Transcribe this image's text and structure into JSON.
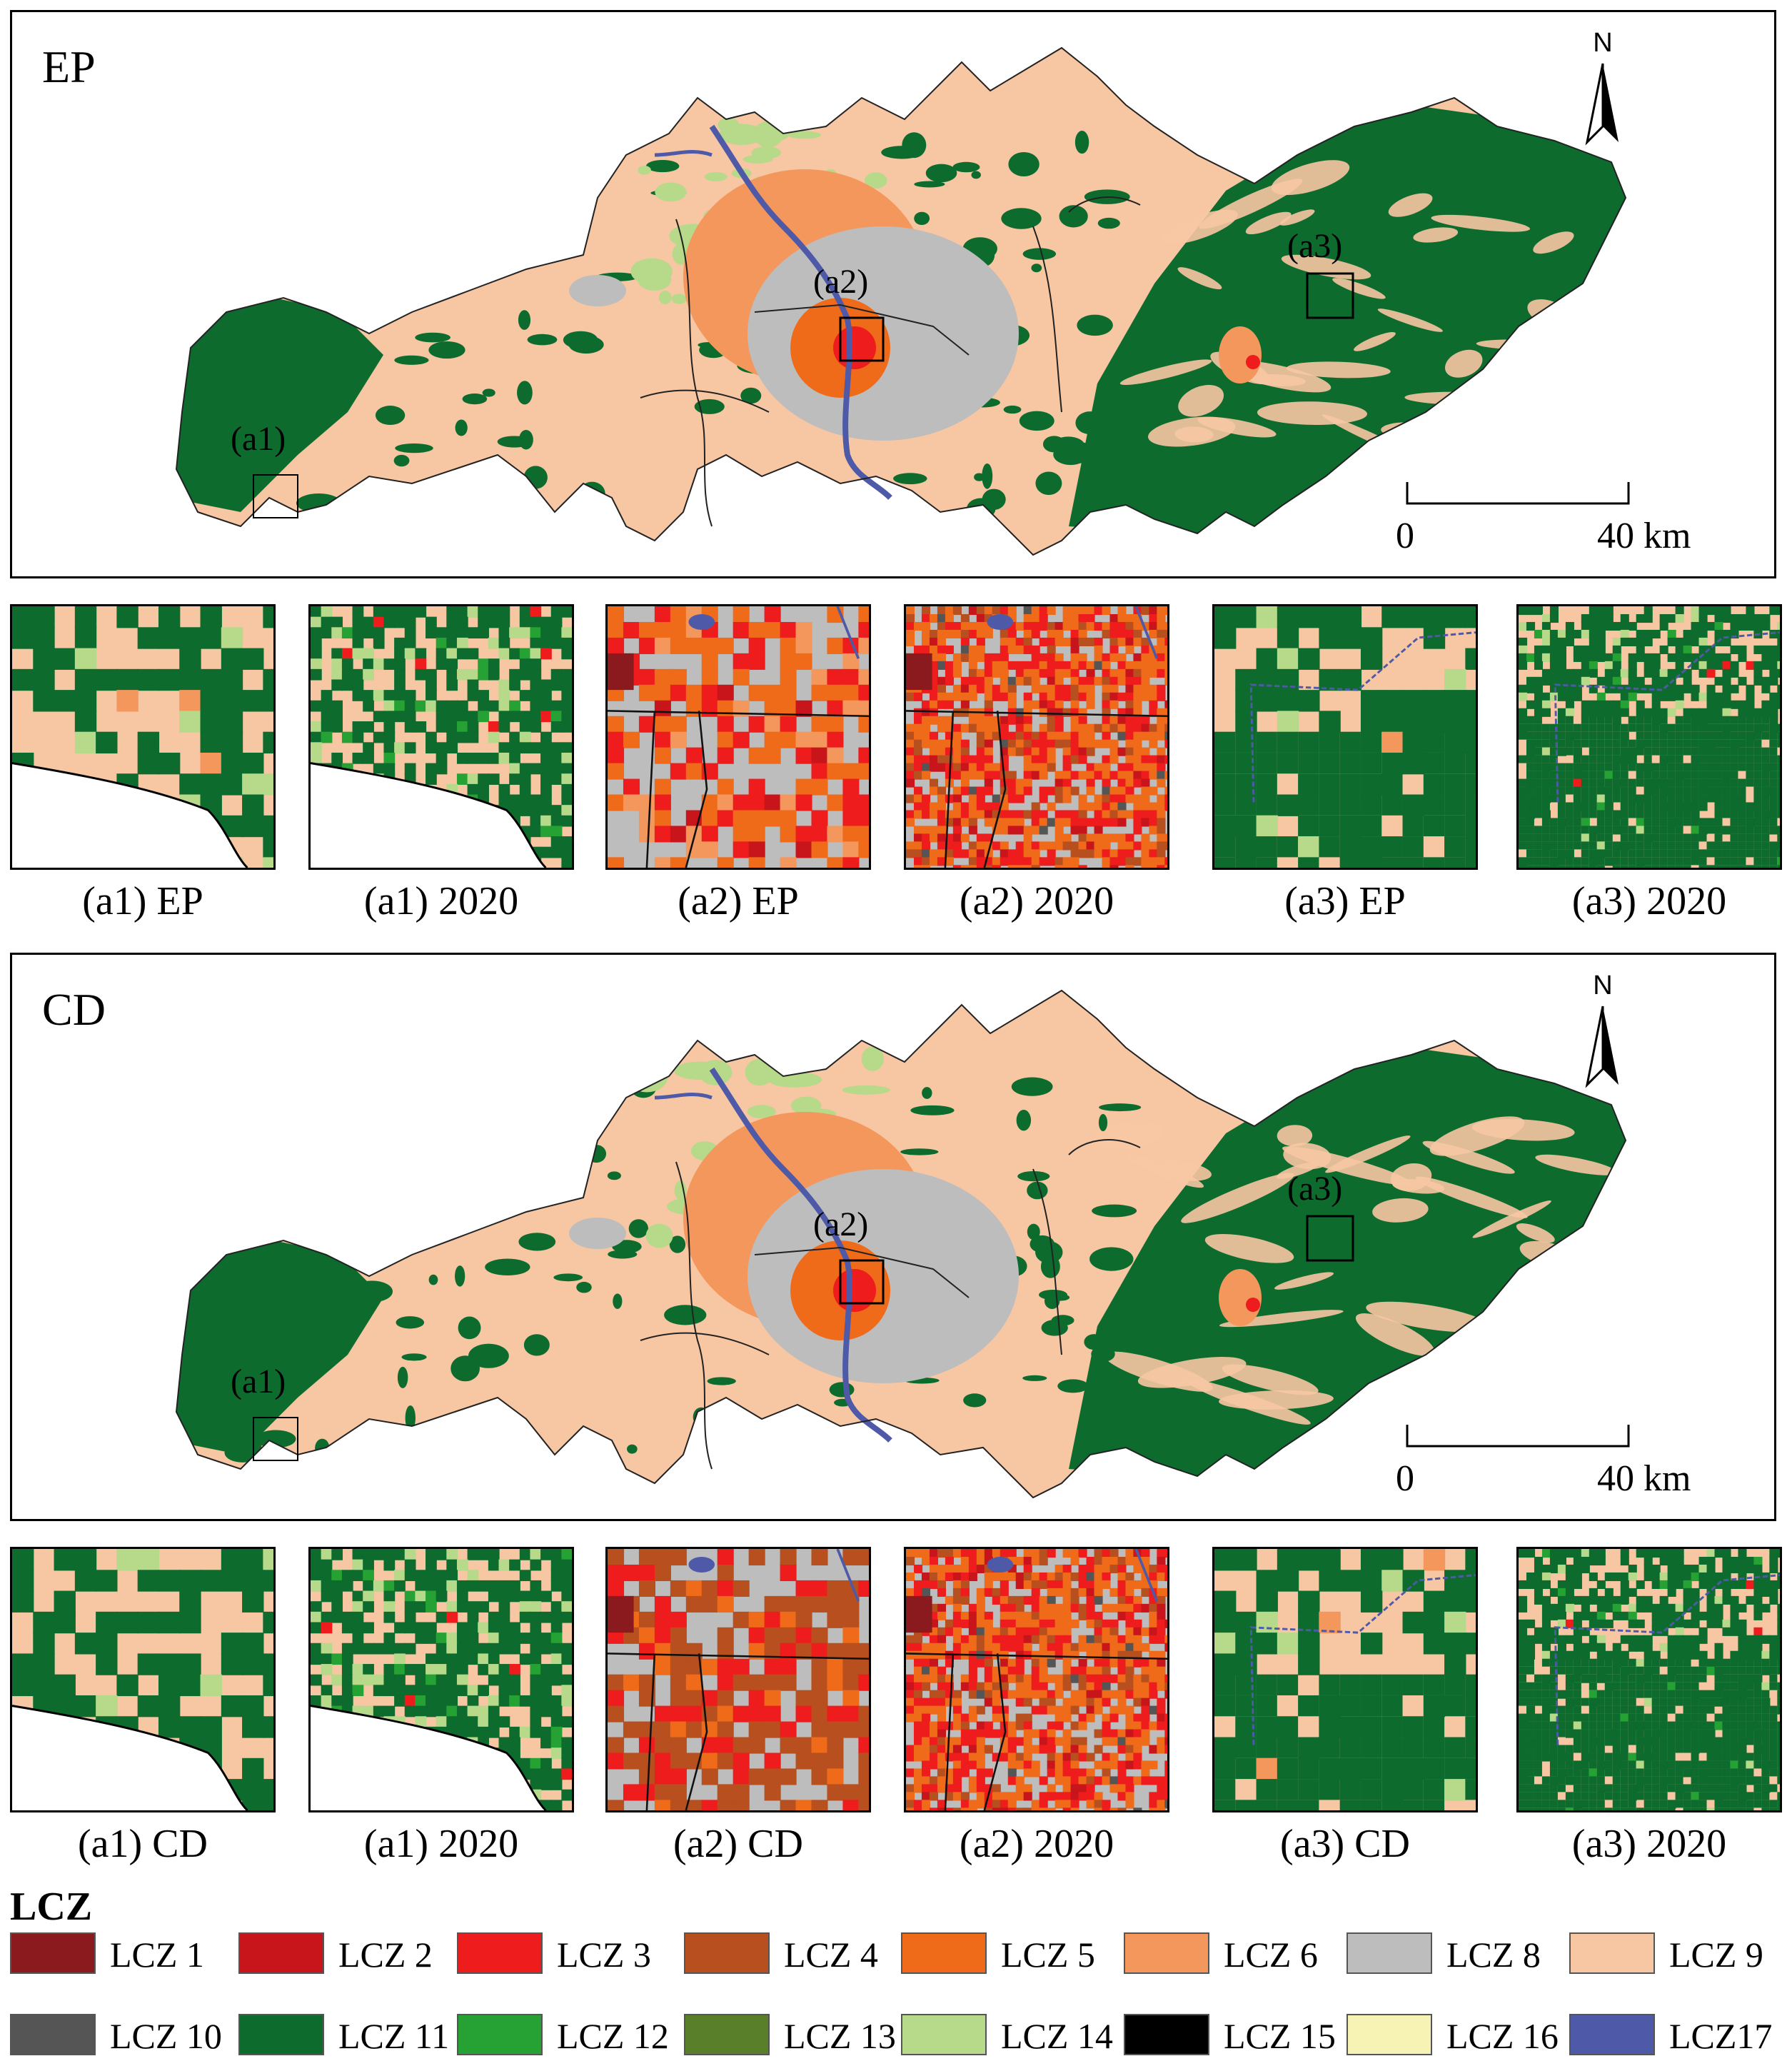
{
  "panels": [
    {
      "title": "EP",
      "north_label": "N",
      "scale": {
        "start": "0",
        "end": "40 km"
      },
      "markers": [
        {
          "label": "(a1)"
        },
        {
          "label": "(a2)"
        },
        {
          "label": "(a3)"
        }
      ],
      "insets": [
        {
          "caption": "(a1) EP",
          "theme": "a1"
        },
        {
          "caption": "(a1) 2020",
          "theme": "a1b"
        },
        {
          "caption": "(a2) EP",
          "theme": "a2"
        },
        {
          "caption": "(a2) 2020",
          "theme": "a2b"
        },
        {
          "caption": "(a3) EP",
          "theme": "a3"
        },
        {
          "caption": "(a3) 2020",
          "theme": "a3b"
        }
      ]
    },
    {
      "title": "CD",
      "north_label": "N",
      "scale": {
        "start": "0",
        "end": "40 km"
      },
      "markers": [
        {
          "label": "(a1)"
        },
        {
          "label": "(a2)"
        },
        {
          "label": "(a3)"
        }
      ],
      "insets": [
        {
          "caption": "(a1) CD",
          "theme": "a1"
        },
        {
          "caption": "(a1) 2020",
          "theme": "a1b"
        },
        {
          "caption": "(a2) CD",
          "theme": "a2c"
        },
        {
          "caption": "(a2) 2020",
          "theme": "a2b"
        },
        {
          "caption": "(a3) CD",
          "theme": "a3"
        },
        {
          "caption": "(a3) 2020",
          "theme": "a3b"
        }
      ]
    }
  ],
  "legend": {
    "title": "LCZ",
    "items": [
      {
        "label": "LCZ 1",
        "color": "#8b1a1f"
      },
      {
        "label": "LCZ 2",
        "color": "#c8151b"
      },
      {
        "label": "LCZ 3",
        "color": "#ee1c1c"
      },
      {
        "label": "LCZ 4",
        "color": "#b84f1e"
      },
      {
        "label": "LCZ 5",
        "color": "#ef6b1a"
      },
      {
        "label": "LCZ 6",
        "color": "#f4975c"
      },
      {
        "label": "LCZ 8",
        "color": "#bdbdbd"
      },
      {
        "label": "LCZ 9",
        "color": "#f7c6a3"
      },
      {
        "label": "LCZ 10",
        "color": "#555555"
      },
      {
        "label": "LCZ 11",
        "color": "#0d6b2e"
      },
      {
        "label": "LCZ 12",
        "color": "#25a233"
      },
      {
        "label": "LCZ 13",
        "color": "#5a7f2a"
      },
      {
        "label": "LCZ 14",
        "color": "#b6d98a"
      },
      {
        "label": "LCZ 15",
        "color": "#000000"
      },
      {
        "label": "LCZ 16",
        "color": "#f7f3b5"
      },
      {
        "label": "LCZ17",
        "color": "#4e5aa8"
      }
    ]
  }
}
